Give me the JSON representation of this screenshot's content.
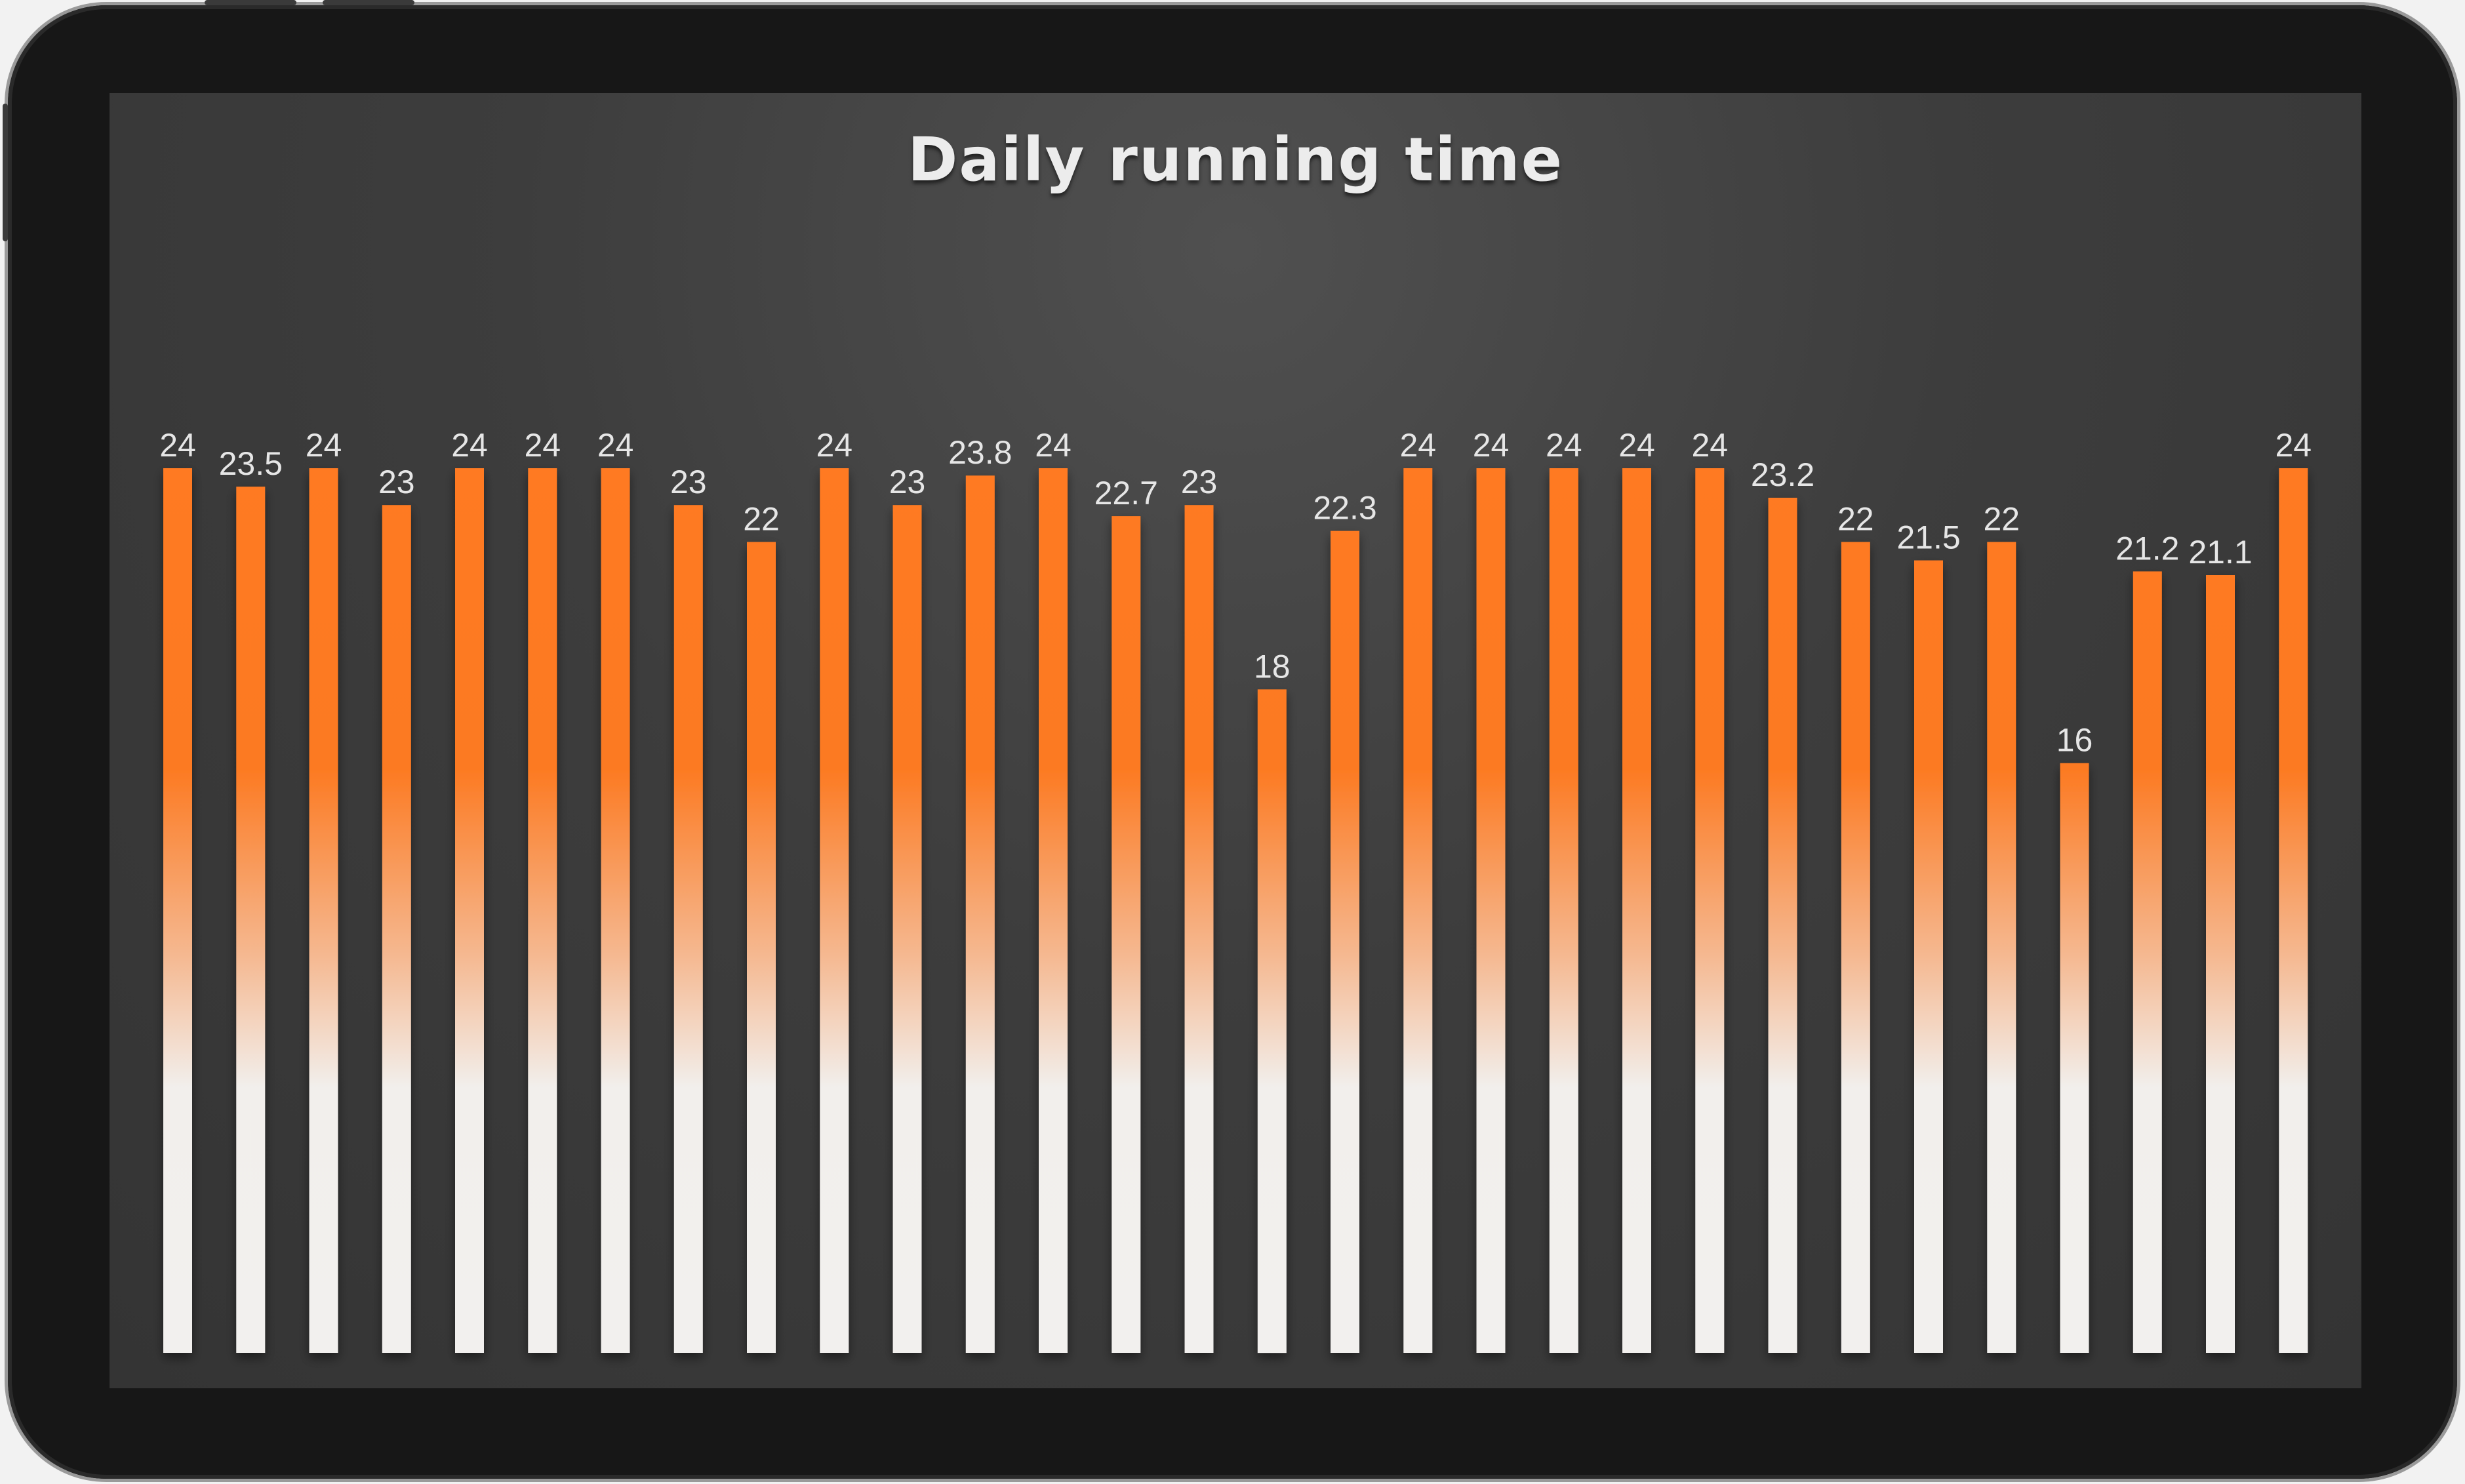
{
  "chart_data": {
    "type": "bar",
    "title": "Daily running time",
    "xlabel": "",
    "ylabel": "",
    "ylim": [
      0,
      24
    ],
    "grid": false,
    "legend": "none",
    "data_labels": true,
    "values": [
      24,
      23.5,
      24,
      23,
      24,
      24,
      24,
      23,
      22,
      24,
      23,
      23.8,
      24,
      22.7,
      23,
      18,
      22.3,
      24,
      24,
      24,
      24,
      24,
      23.2,
      22,
      21.5,
      22,
      16,
      21.2,
      21.1,
      24
    ]
  },
  "colors": {
    "bar_top": "#ff7a20",
    "bar_bottom": "#f2f0ee",
    "screen_background": "#3d3d3d",
    "device_frame": "#171717",
    "label_text": "#e6e6e6"
  }
}
